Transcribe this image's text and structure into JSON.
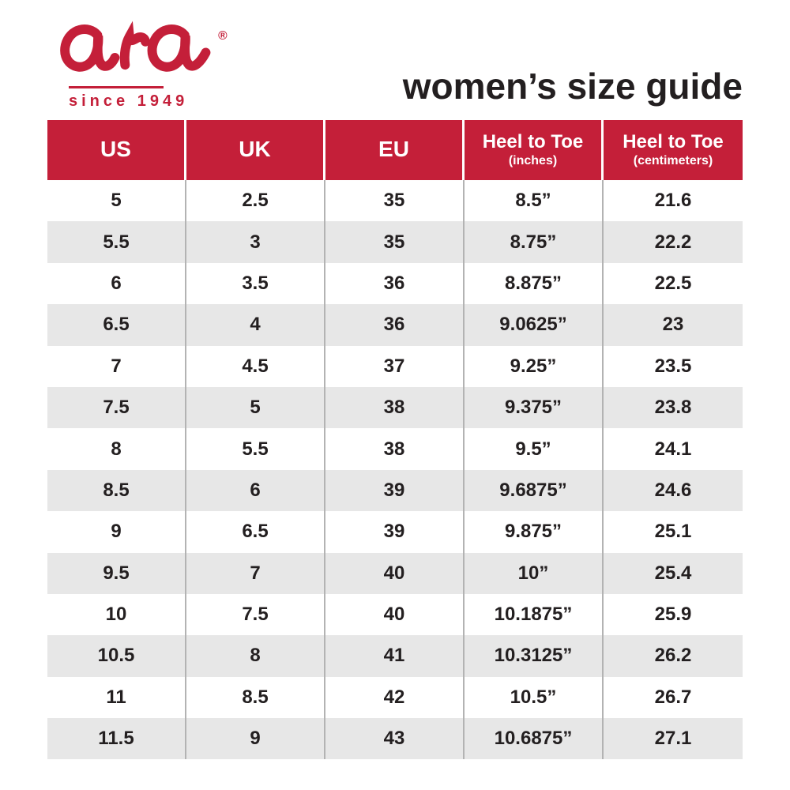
{
  "brand": {
    "logo_text": "ara",
    "registered_mark": "®",
    "tagline": "since 1949"
  },
  "header": {
    "title": "women’s size guide"
  },
  "colors": {
    "accent_red": "#c41f39",
    "header_text": "#ffffff",
    "row_alt_bg": "#e7e7e7",
    "body_text": "#231f20",
    "divider": "#b3b3b3"
  },
  "chart_data": {
    "type": "table",
    "title": "women’s size guide",
    "columns": [
      {
        "label": "US",
        "sublabel": ""
      },
      {
        "label": "UK",
        "sublabel": ""
      },
      {
        "label": "EU",
        "sublabel": ""
      },
      {
        "label": "Heel to Toe",
        "sublabel": "(inches)"
      },
      {
        "label": "Heel to Toe",
        "sublabel": "(centimeters)"
      }
    ],
    "rows": [
      [
        "5",
        "2.5",
        "35",
        "8.5”",
        "21.6"
      ],
      [
        "5.5",
        "3",
        "35",
        "8.75”",
        "22.2"
      ],
      [
        "6",
        "3.5",
        "36",
        "8.875”",
        "22.5"
      ],
      [
        "6.5",
        "4",
        "36",
        "9.0625”",
        "23"
      ],
      [
        "7",
        "4.5",
        "37",
        "9.25”",
        "23.5"
      ],
      [
        "7.5",
        "5",
        "38",
        "9.375”",
        "23.8"
      ],
      [
        "8",
        "5.5",
        "38",
        "9.5”",
        "24.1"
      ],
      [
        "8.5",
        "6",
        "39",
        "9.6875”",
        "24.6"
      ],
      [
        "9",
        "6.5",
        "39",
        "9.875”",
        "25.1"
      ],
      [
        "9.5",
        "7",
        "40",
        "10”",
        "25.4"
      ],
      [
        "10",
        "7.5",
        "40",
        "10.1875”",
        "25.9"
      ],
      [
        "10.5",
        "8",
        "41",
        "10.3125”",
        "26.2"
      ],
      [
        "11",
        "8.5",
        "42",
        "10.5”",
        "26.7"
      ],
      [
        "11.5",
        "9",
        "43",
        "10.6875”",
        "27.1"
      ]
    ]
  }
}
